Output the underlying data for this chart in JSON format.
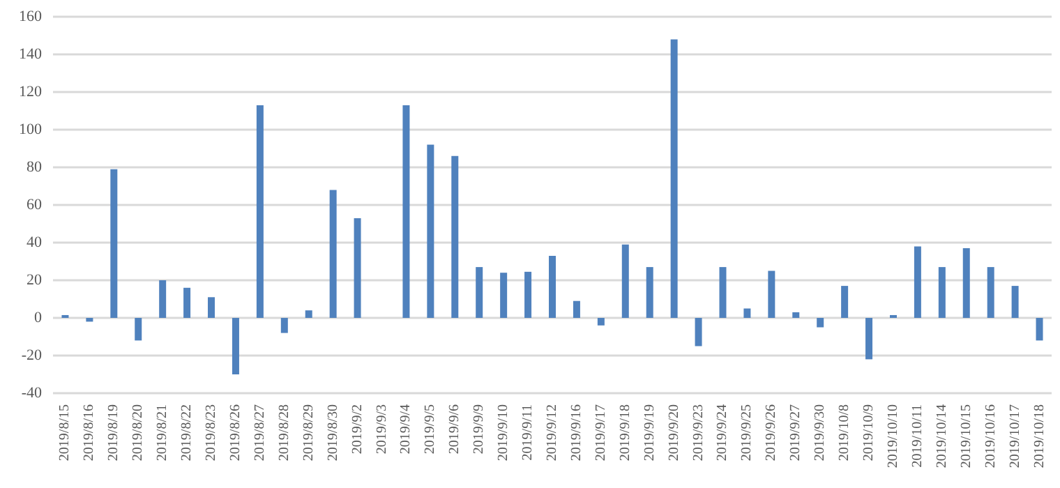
{
  "chart_data": {
    "type": "bar",
    "categories": [
      "2019/8/15",
      "2019/8/16",
      "2019/8/19",
      "2019/8/20",
      "2019/8/21",
      "2019/8/22",
      "2019/8/23",
      "2019/8/26",
      "2019/8/27",
      "2019/8/28",
      "2019/8/29",
      "2019/8/30",
      "2019/9/2",
      "2019/9/3",
      "2019/9/4",
      "2019/9/5",
      "2019/9/6",
      "2019/9/9",
      "2019/9/10",
      "2019/9/11",
      "2019/9/12",
      "2019/9/16",
      "2019/9/17",
      "2019/9/18",
      "2019/9/19",
      "2019/9/20",
      "2019/9/23",
      "2019/9/24",
      "2019/9/25",
      "2019/9/26",
      "2019/9/27",
      "2019/9/30",
      "2019/10/8",
      "2019/10/9",
      "2019/10/10",
      "2019/10/11",
      "2019/10/14",
      "2019/10/15",
      "2019/10/16",
      "2019/10/17",
      "2019/10/18"
    ],
    "values": [
      1.5,
      -2,
      79,
      -12,
      20,
      16,
      11,
      -30,
      113,
      -8,
      4,
      68,
      53,
      0,
      113,
      92,
      86,
      27,
      24,
      24.5,
      33,
      9,
      -4,
      39,
      27,
      148,
      -15,
      27,
      5,
      25,
      3,
      -5,
      17,
      -22,
      1.5,
      38,
      27,
      37,
      27,
      17,
      -12
    ],
    "color": "#4f81bd",
    "ylim": [
      -40,
      160
    ],
    "yticks": [
      -40,
      -20,
      0,
      20,
      40,
      60,
      80,
      100,
      120,
      140,
      160
    ],
    "grid": "y"
  }
}
